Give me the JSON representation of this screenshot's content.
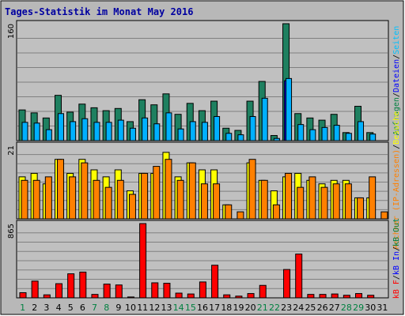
{
  "chart_data": [
    {
      "type": "bar",
      "title": "Tages-Statistik im Monat May 2016",
      "ymax_label": "160",
      "ylim": [
        0,
        160
      ],
      "grid": true,
      "legend_parts": [
        {
          "text": "Anfragen",
          "color": "#008040"
        },
        {
          "text": "/",
          "color": "#000000"
        },
        {
          "text": "Dateien",
          "color": "#0000ff"
        },
        {
          "text": "/",
          "color": "#000000"
        },
        {
          "text": "Seiten",
          "color": "#00c0ff"
        }
      ],
      "categories": [
        "1",
        "2",
        "3",
        "4",
        "5",
        "6",
        "7",
        "8",
        "9",
        "10",
        "11",
        "12",
        "13",
        "14",
        "15",
        "16",
        "17",
        "18",
        "19",
        "20",
        "21",
        "22",
        "23",
        "24",
        "25",
        "26",
        "27",
        "28",
        "29",
        "30",
        "31"
      ],
      "series": [
        {
          "name": "Anfragen",
          "color": "#1e8060",
          "values": [
            42,
            38,
            31,
            62,
            39,
            50,
            45,
            41,
            44,
            26,
            56,
            49,
            64,
            36,
            51,
            41,
            54,
            17,
            14,
            54,
            81,
            7,
            160,
            37,
            31,
            28,
            36,
            11,
            47,
            11,
            0
          ]
        },
        {
          "name": "Dateien",
          "color": "#0000ff",
          "values": [
            0,
            0,
            0,
            0,
            0,
            0,
            0,
            0,
            0,
            0,
            0,
            0,
            0,
            0,
            0,
            0,
            0,
            0,
            0,
            0,
            0,
            0,
            82,
            0,
            0,
            0,
            0,
            0,
            0,
            0,
            0
          ]
        },
        {
          "name": "Seiten",
          "color": "#00b0ff",
          "values": [
            25,
            24,
            15,
            37,
            26,
            30,
            25,
            25,
            28,
            17,
            31,
            23,
            38,
            16,
            26,
            25,
            33,
            10,
            8,
            33,
            58,
            3,
            85,
            22,
            15,
            18,
            21,
            10,
            26,
            9,
            0
          ]
        }
      ]
    },
    {
      "type": "bar",
      "ymax_label": "21",
      "ylim": [
        0,
        21
      ],
      "grid": true,
      "legend_parts": [
        {
          "text": "Rechner (IP-Adressen)",
          "color": "#ff8000"
        },
        {
          "text": "/",
          "color": "#000000"
        },
        {
          "text": "Besuche",
          "color": "#ffff00"
        }
      ],
      "categories": [
        "1",
        "2",
        "3",
        "4",
        "5",
        "6",
        "7",
        "8",
        "9",
        "10",
        "11",
        "12",
        "13",
        "14",
        "15",
        "16",
        "17",
        "18",
        "19",
        "20",
        "21",
        "22",
        "23",
        "24",
        "25",
        "26",
        "27",
        "28",
        "29",
        "30",
        "31"
      ],
      "series": [
        {
          "name": "Besuche",
          "color": "#ffff00",
          "values": [
            12,
            13,
            10,
            17,
            13,
            17,
            14,
            12,
            14,
            8,
            13,
            13,
            19,
            12,
            16,
            14,
            14,
            4,
            0,
            16,
            11,
            8,
            12,
            13,
            11,
            10,
            11,
            11,
            6,
            6,
            0
          ]
        },
        {
          "name": "Rechner",
          "color": "#ff8000",
          "values": [
            11,
            11,
            12,
            17,
            12,
            16,
            11,
            9,
            11,
            7,
            13,
            15,
            17,
            11,
            16,
            10,
            10,
            4,
            2,
            17,
            11,
            4,
            13,
            9,
            12,
            9,
            10,
            10,
            6,
            12,
            2
          ]
        }
      ]
    },
    {
      "type": "bar",
      "ymax_label": "865",
      "ylim": [
        0,
        865
      ],
      "grid": true,
      "legend_parts": [
        {
          "text": "kB F",
          "color": "#ff0000"
        },
        {
          "text": "/",
          "color": "#000000"
        },
        {
          "text": "kB In",
          "color": "#0000ff"
        },
        {
          "text": "/",
          "color": "#000000"
        },
        {
          "text": "kB Out",
          "color": "#008040"
        }
      ],
      "categories": [
        "1",
        "2",
        "3",
        "4",
        "5",
        "6",
        "7",
        "8",
        "9",
        "10",
        "11",
        "12",
        "13",
        "14",
        "15",
        "16",
        "17",
        "18",
        "19",
        "20",
        "21",
        "22",
        "23",
        "24",
        "25",
        "26",
        "27",
        "28",
        "29",
        "30",
        "31"
      ],
      "series": [
        {
          "name": "kB F",
          "color": "#ff0000",
          "values": [
            60,
            195,
            35,
            165,
            280,
            300,
            40,
            160,
            150,
            10,
            865,
            175,
            170,
            55,
            45,
            185,
            380,
            35,
            20,
            50,
            145,
            0,
            330,
            510,
            40,
            40,
            45,
            30,
            50,
            30,
            0
          ]
        }
      ]
    }
  ],
  "x_axis": {
    "labels": [
      "1",
      "2",
      "3",
      "4",
      "5",
      "6",
      "7",
      "8",
      "9",
      "10",
      "11",
      "12",
      "13",
      "14",
      "15",
      "16",
      "17",
      "18",
      "19",
      "20",
      "21",
      "22",
      "23",
      "24",
      "25",
      "26",
      "27",
      "28",
      "29",
      "30",
      "31"
    ],
    "weekend_days": [
      1,
      7,
      8,
      14,
      15,
      21,
      22,
      28,
      29
    ],
    "weekend_color": "#008040",
    "weekday_color": "#000000"
  }
}
